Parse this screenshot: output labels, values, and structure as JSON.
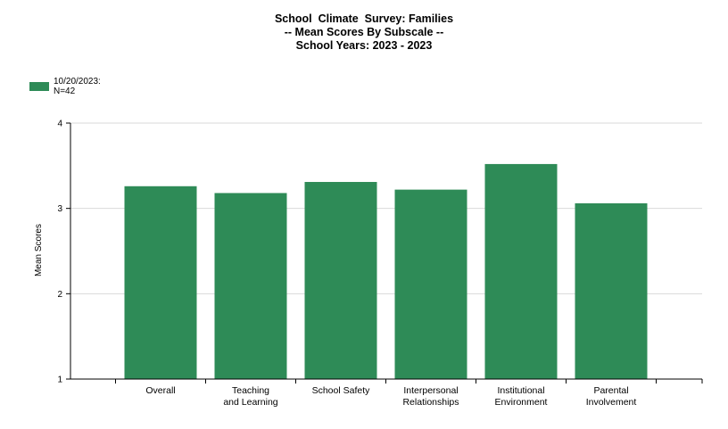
{
  "header": {
    "title": "School  Climate  Survey: Families",
    "subtitle": "-- Mean Scores By Subscale --",
    "years": "School Years: 2023 - 2023"
  },
  "legend": {
    "date": "10/20/2023:",
    "count": "N=42"
  },
  "colors": {
    "bar": "#2e8b57",
    "grid": "#d9d9d9",
    "axis": "#000000"
  },
  "chart_data": {
    "type": "bar",
    "categories": [
      [
        "Overall"
      ],
      [
        "Teaching",
        "and Learning"
      ],
      [
        "School Safety"
      ],
      [
        "Interpersonal",
        "Relationships"
      ],
      [
        "Institutional",
        "Environment"
      ],
      [
        "Parental",
        "Involvement"
      ]
    ],
    "series": [
      {
        "name": "10/20/2023: N=42",
        "values": [
          3.26,
          3.18,
          3.31,
          3.22,
          3.52,
          3.06
        ]
      }
    ],
    "ylabel": "Mean Scores",
    "ylim": [
      1,
      4
    ],
    "yticks": [
      "1",
      "2",
      "3",
      "4"
    ],
    "grid": true,
    "legend_position": "top-left"
  }
}
